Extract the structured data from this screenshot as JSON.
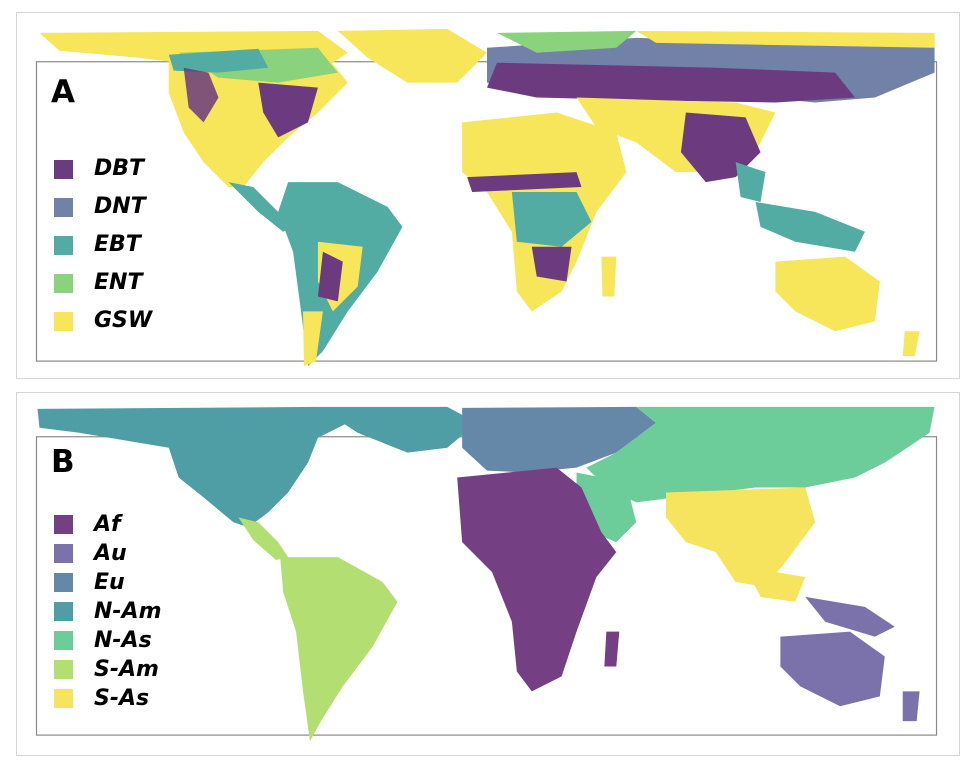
{
  "panels": [
    {
      "letter": "A",
      "legend": [
        {
          "label": "DBT",
          "color": "#6b3a7f"
        },
        {
          "label": "DNT",
          "color": "#7181a8"
        },
        {
          "label": "EBT",
          "color": "#52aca4"
        },
        {
          "label": "ENT",
          "color": "#8bd27c"
        },
        {
          "label": "GSW",
          "color": "#f7e55a"
        }
      ]
    },
    {
      "letter": "B",
      "legend": [
        {
          "label": "Af",
          "color": "#753f84"
        },
        {
          "label": "Au",
          "color": "#7c72ab"
        },
        {
          "label": "Eu",
          "color": "#6688a8"
        },
        {
          "label": "N-Am",
          "color": "#4f9ea6"
        },
        {
          "label": "N-As",
          "color": "#6dcd9a"
        },
        {
          "label": "S-Am",
          "color": "#b3df72"
        },
        {
          "label": "S-As",
          "color": "#f6e45f"
        }
      ]
    }
  ]
}
